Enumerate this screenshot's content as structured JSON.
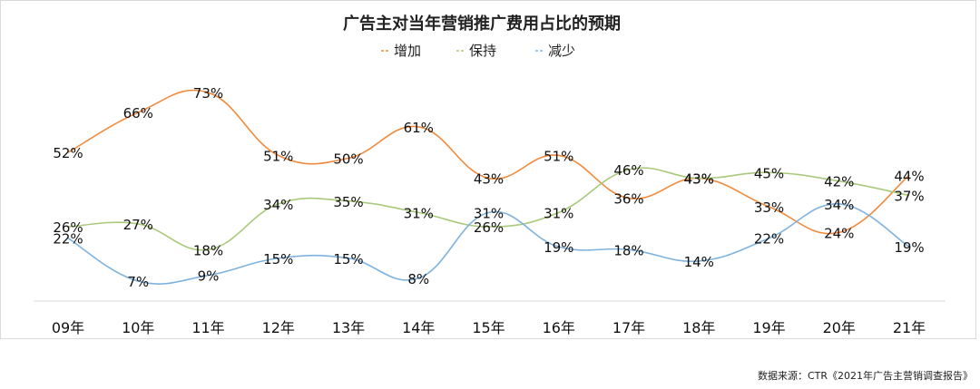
{
  "chart_data": {
    "type": "line",
    "title": "广告主对当年营销推广费用占比的预期",
    "categories": [
      "09年",
      "10年",
      "11年",
      "12年",
      "13年",
      "14年",
      "15年",
      "16年",
      "17年",
      "18年",
      "19年",
      "20年",
      "21年"
    ],
    "series": [
      {
        "name": "增加",
        "color": "#f08a3c",
        "values": [
          52,
          66,
          73,
          51,
          50,
          61,
          43,
          51,
          36,
          43,
          33,
          24,
          44
        ]
      },
      {
        "name": "保持",
        "color": "#a9c97a",
        "values": [
          26,
          27,
          18,
          34,
          35,
          31,
          26,
          31,
          46,
          43,
          45,
          42,
          37
        ]
      },
      {
        "name": "减少",
        "color": "#7fb3df",
        "values": [
          22,
          7,
          9,
          15,
          15,
          8,
          31,
          19,
          18,
          14,
          22,
          34,
          19
        ]
      }
    ],
    "ylim": [
      0,
      80
    ],
    "label_suffix": "%",
    "legend_position": "top-center",
    "grid": false
  },
  "source": "数据来源：CTR《2021年广告主营销调查报告》"
}
